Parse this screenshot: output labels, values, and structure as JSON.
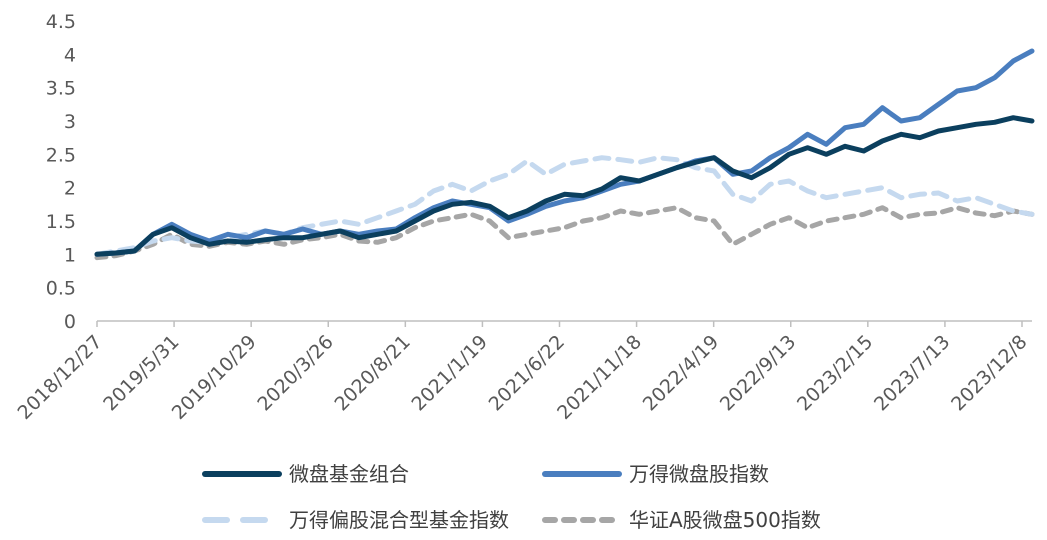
{
  "chart_data": {
    "type": "line",
    "title": "",
    "xlabel": "",
    "ylabel": "",
    "ylim": [
      0,
      4.5
    ],
    "yticks": [
      "0",
      "0.5",
      "1",
      "1.5",
      "2",
      "2.5",
      "3",
      "3.5",
      "4",
      "4.5"
    ],
    "xticks": [
      "2018/12/27",
      "2019/5/31",
      "2019/10/29",
      "2020/3/26",
      "2020/8/21",
      "2021/1/19",
      "2021/6/22",
      "2021/11/18",
      "2022/4/19",
      "2022/9/13",
      "2023/2/15",
      "2023/7/13",
      "2023/12/8"
    ],
    "grid": false,
    "legend_position": "bottom",
    "series": [
      {
        "name": "微盘基金组合",
        "color": "#0b3f5e",
        "style": "solid",
        "values": [
          1.0,
          1.02,
          1.05,
          1.3,
          1.4,
          1.25,
          1.15,
          1.2,
          1.18,
          1.22,
          1.25,
          1.25,
          1.3,
          1.35,
          1.25,
          1.3,
          1.35,
          1.5,
          1.65,
          1.75,
          1.78,
          1.72,
          1.55,
          1.65,
          1.8,
          1.9,
          1.88,
          1.98,
          2.15,
          2.1,
          2.2,
          2.3,
          2.38,
          2.45,
          2.25,
          2.15,
          2.3,
          2.5,
          2.6,
          2.5,
          2.62,
          2.55,
          2.7,
          2.8,
          2.75,
          2.85,
          2.9,
          2.95,
          2.98,
          3.05,
          3.0
        ]
      },
      {
        "name": "万得微盘股指数",
        "color": "#4a7ebf",
        "style": "solid",
        "values": [
          1.0,
          1.02,
          1.05,
          1.3,
          1.45,
          1.3,
          1.2,
          1.3,
          1.25,
          1.35,
          1.3,
          1.38,
          1.3,
          1.35,
          1.3,
          1.35,
          1.38,
          1.55,
          1.7,
          1.8,
          1.75,
          1.7,
          1.5,
          1.6,
          1.72,
          1.8,
          1.85,
          1.95,
          2.05,
          2.1,
          2.2,
          2.3,
          2.4,
          2.45,
          2.2,
          2.25,
          2.45,
          2.6,
          2.8,
          2.65,
          2.9,
          2.95,
          3.2,
          3.0,
          3.05,
          3.25,
          3.45,
          3.5,
          3.65,
          3.9,
          4.05
        ]
      },
      {
        "name": "万得偏股混合型基金指数",
        "color": "#c5d9ef",
        "style": "dashed",
        "values": [
          1.0,
          1.05,
          1.1,
          1.2,
          1.25,
          1.2,
          1.18,
          1.25,
          1.3,
          1.35,
          1.3,
          1.4,
          1.45,
          1.5,
          1.45,
          1.55,
          1.65,
          1.75,
          1.95,
          2.05,
          1.95,
          2.1,
          2.2,
          2.4,
          2.2,
          2.35,
          2.4,
          2.45,
          2.42,
          2.38,
          2.45,
          2.42,
          2.3,
          2.25,
          1.9,
          1.8,
          2.05,
          2.1,
          1.95,
          1.85,
          1.9,
          1.95,
          2.0,
          1.85,
          1.9,
          1.92,
          1.8,
          1.85,
          1.75,
          1.65,
          1.6
        ]
      },
      {
        "name": "华证A股微盘500指数",
        "color": "#a6a6a6",
        "style": "dashed",
        "values": [
          0.95,
          0.98,
          1.05,
          1.15,
          1.3,
          1.15,
          1.12,
          1.18,
          1.15,
          1.2,
          1.15,
          1.22,
          1.25,
          1.3,
          1.2,
          1.18,
          1.25,
          1.4,
          1.5,
          1.55,
          1.6,
          1.5,
          1.25,
          1.3,
          1.35,
          1.4,
          1.5,
          1.55,
          1.65,
          1.6,
          1.65,
          1.7,
          1.55,
          1.5,
          1.15,
          1.3,
          1.45,
          1.55,
          1.4,
          1.5,
          1.55,
          1.6,
          1.7,
          1.55,
          1.6,
          1.62,
          1.7,
          1.62,
          1.58,
          1.65,
          1.6
        ]
      }
    ]
  }
}
